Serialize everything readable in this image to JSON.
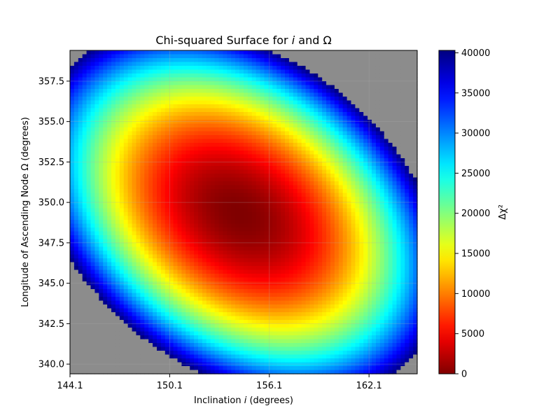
{
  "chart_data": {
    "type": "heatmap",
    "title": {
      "prefix": "Chi-squared Surface for ",
      "var1": "i",
      "mid": " and Ω"
    },
    "xlabel": {
      "prefix": "Inclination ",
      "var": "i",
      "suffix": " (degrees)"
    },
    "ylabel": "Longitude of Ascending Node Ω (degrees)",
    "colorbar_label": "Δχ²",
    "colormap": "jet_r",
    "masked_color": "#8c8c8c",
    "xlim": [
      144.1,
      165.0
    ],
    "ylim": [
      339.4,
      359.4
    ],
    "xticks": [
      144.1,
      150.1,
      156.1,
      162.1
    ],
    "xtick_labels": [
      "144.1",
      "150.1",
      "156.1",
      "162.1"
    ],
    "yticks": [
      340.0,
      342.5,
      345.0,
      347.5,
      350.0,
      352.5,
      355.0,
      357.5
    ],
    "ytick_labels": [
      "340.0",
      "342.5",
      "345.0",
      "347.5",
      "350.0",
      "352.5",
      "355.0",
      "357.5"
    ],
    "colorbar_range": [
      0,
      40300
    ],
    "colorbar_ticks": [
      0,
      5000,
      10000,
      15000,
      20000,
      25000,
      30000,
      35000,
      40000
    ],
    "colorbar_tick_labels": [
      "0",
      "5000",
      "10000",
      "15000",
      "20000",
      "25000",
      "30000",
      "35000",
      "40000"
    ],
    "minimum": {
      "i": 154.3,
      "omega": 349.3
    },
    "max_shown": 40300,
    "grid": true,
    "grid_resolution": 84
  }
}
